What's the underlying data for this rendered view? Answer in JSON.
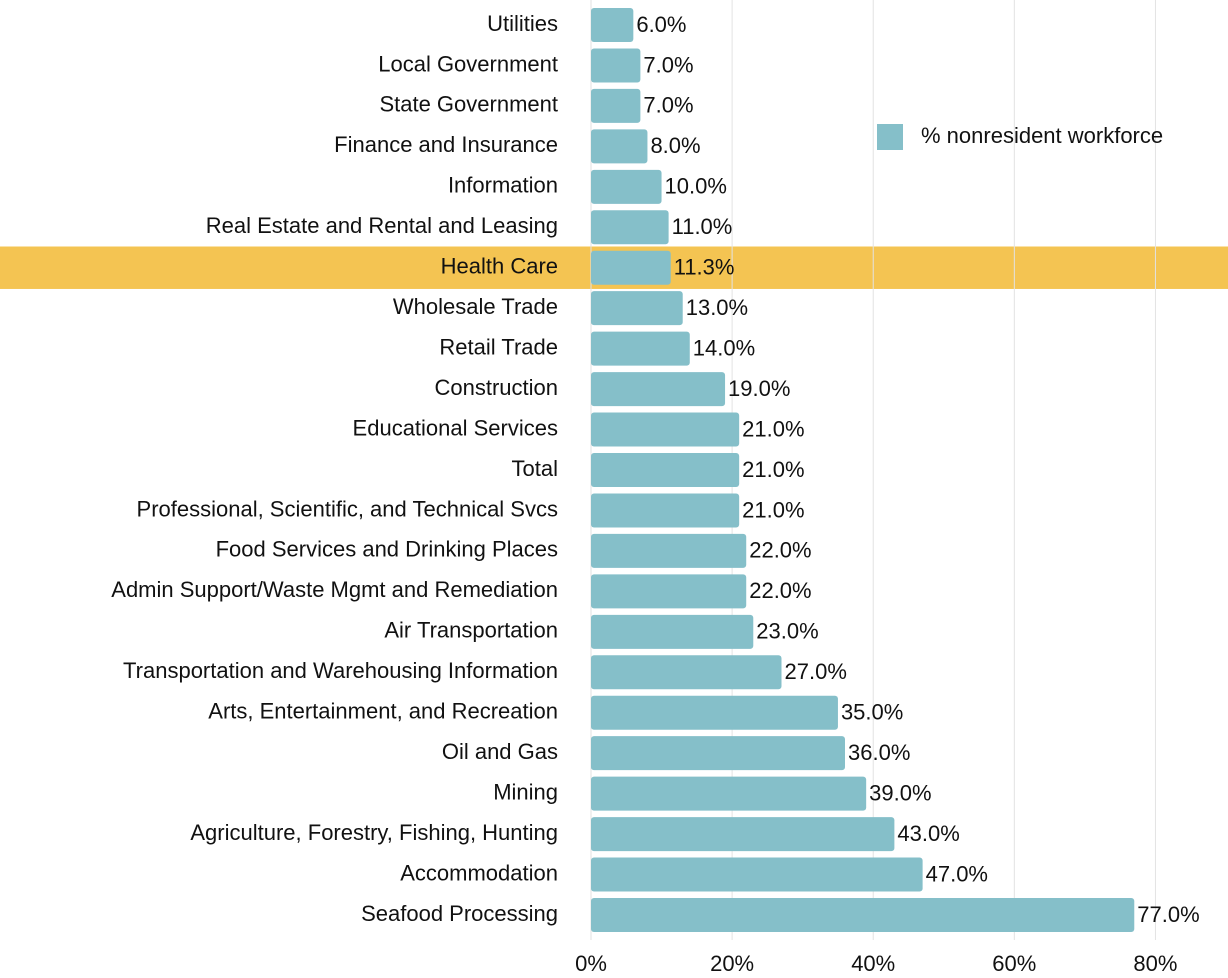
{
  "chart_data": {
    "type": "bar",
    "orientation": "horizontal",
    "categories": [
      "Utilities",
      "Local Government",
      "State Government",
      "Finance and Insurance",
      "Information",
      "Real Estate and Rental and Leasing",
      "Health Care",
      "Wholesale Trade",
      "Retail Trade",
      "Construction",
      "Educational Services",
      "Total",
      "Professional, Scientific, and Technical Svcs",
      "Food Services and Drinking Places",
      "Admin Support/Waste Mgmt and Remediation",
      "Air Transportation",
      "Transportation and Warehousing Information",
      "Arts, Entertainment, and Recreation",
      "Oil and Gas",
      "Mining",
      "Agriculture, Forestry, Fishing, Hunting",
      "Accommodation",
      "Seafood Processing"
    ],
    "series": [
      {
        "name": "% nonresident workforce",
        "color": "#85bfc9",
        "values": [
          6.0,
          7.0,
          7.0,
          8.0,
          10.0,
          11.0,
          11.3,
          13.0,
          14.0,
          19.0,
          21.0,
          21.0,
          21.0,
          22.0,
          22.0,
          23.0,
          27.0,
          35.0,
          36.0,
          39.0,
          43.0,
          47.0,
          77.0
        ],
        "value_labels": [
          "6.0%",
          "7.0%",
          "7.0%",
          "8.0%",
          "10.0%",
          "11.0%",
          "11.3%",
          "13.0%",
          "14.0%",
          "19.0%",
          "21.0%",
          "21.0%",
          "21.0%",
          "22.0%",
          "22.0%",
          "23.0%",
          "27.0%",
          "35.0%",
          "36.0%",
          "39.0%",
          "43.0%",
          "47.0%",
          "77.0%"
        ]
      }
    ],
    "xlim": [
      0,
      90
    ],
    "xticks": [
      {
        "value": 0,
        "label": "0%"
      },
      {
        "value": 20,
        "label": "20%"
      },
      {
        "value": 40,
        "label": "40%"
      },
      {
        "value": 60,
        "label": "60%"
      },
      {
        "value": 80,
        "label": "80%"
      }
    ],
    "grid": true,
    "legend": "upper right",
    "highlight": "Health Care",
    "highlight_color": "#f4c452"
  }
}
